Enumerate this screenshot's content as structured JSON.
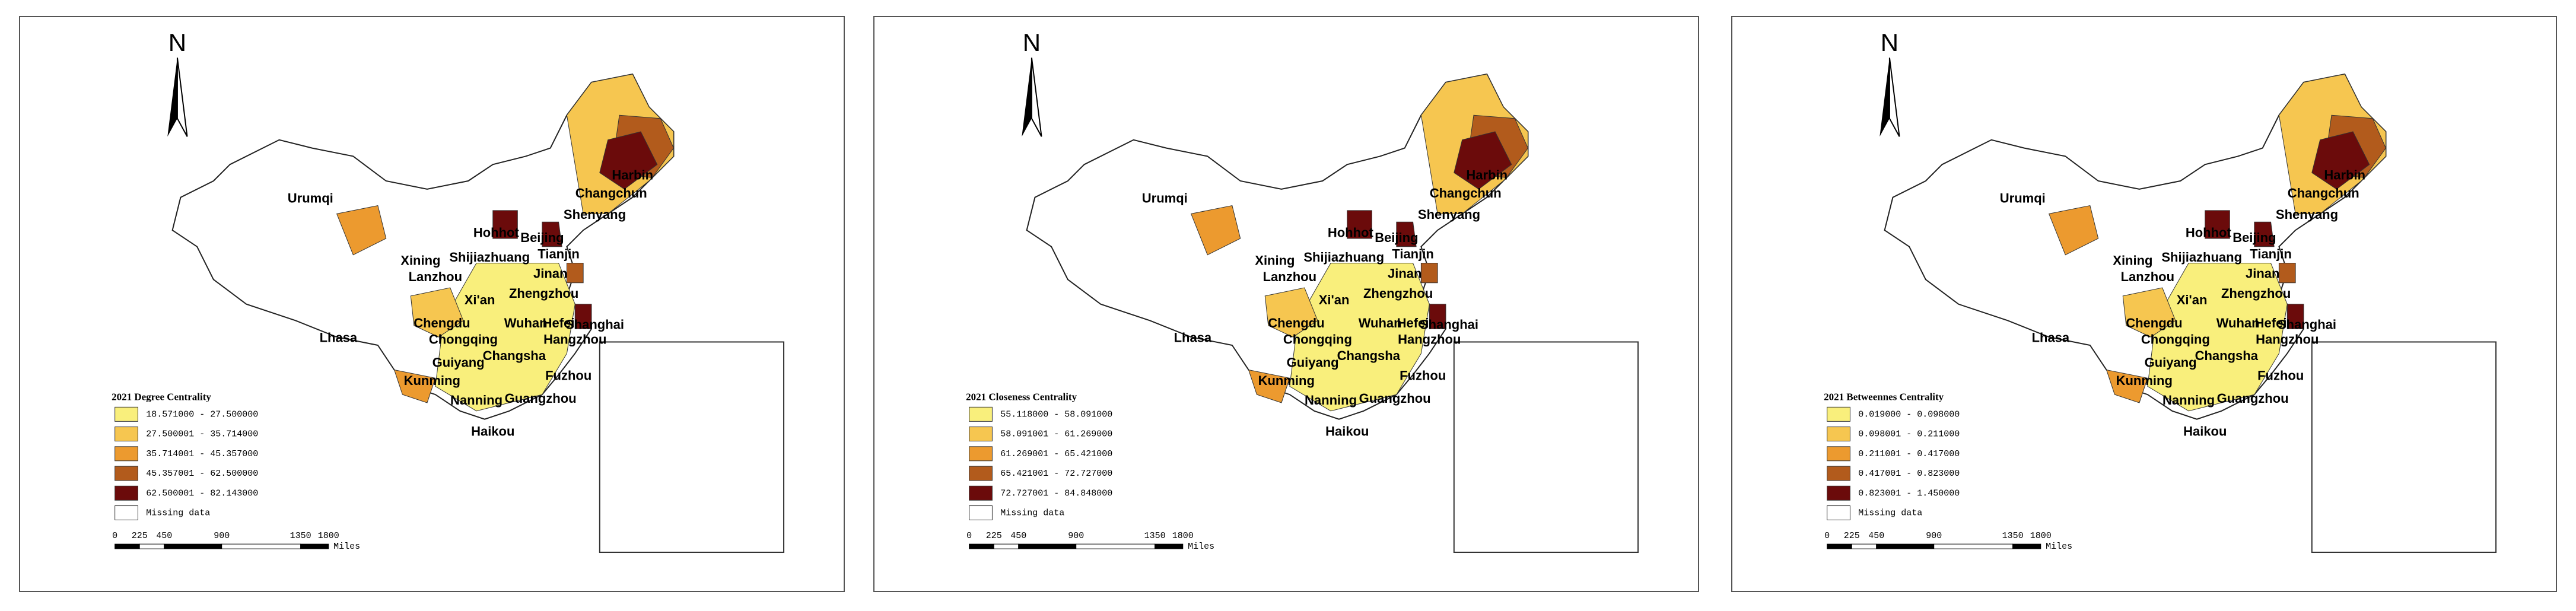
{
  "north_label": "N",
  "scale_labels": [
    "0",
    "225",
    "450",
    "900",
    "1350",
    "1800"
  ],
  "scale_unit": "Miles",
  "cities": [
    "Harbin",
    "Changchun",
    "Shenyang",
    "Urumqi",
    "Hohhot",
    "Beijing",
    "Tianjin",
    "Shijiazhuang",
    "Xining",
    "Lanzhou",
    "Jinan",
    "Xi'an",
    "Zhengzhou",
    "Shanghai",
    "Chengdu",
    "Chongqing",
    "Wuhan",
    "Hefei",
    "Hangzhou",
    "Lhasa",
    "Guiyang",
    "Changsha",
    "Kunming",
    "Fuzhou",
    "Nanning",
    "Guangzhou",
    "Haikou"
  ],
  "panels": [
    {
      "legend_title": "2021 Degree Centrality",
      "missing_label": "Missing data",
      "classes": [
        {
          "label": "18.571000 - 27.500000",
          "color": "#f9ef7c"
        },
        {
          "label": "27.500001 - 35.714000",
          "color": "#f6c650"
        },
        {
          "label": "35.714001 - 45.357000",
          "color": "#ec9a2f"
        },
        {
          "label": "45.357001 - 62.500000",
          "color": "#b25b1c"
        },
        {
          "label": "62.500001 - 82.143000",
          "color": "#6b0b0b"
        }
      ]
    },
    {
      "legend_title": "2021 Closeness Centrality",
      "missing_label": "Missing data",
      "classes": [
        {
          "label": "55.118000 - 58.091000",
          "color": "#f9ef7c"
        },
        {
          "label": "58.091001 - 61.269000",
          "color": "#f6c650"
        },
        {
          "label": "61.269001 - 65.421000",
          "color": "#ec9a2f"
        },
        {
          "label": "65.421001 - 72.727000",
          "color": "#b25b1c"
        },
        {
          "label": "72.727001 - 84.848000",
          "color": "#6b0b0b"
        }
      ]
    },
    {
      "legend_title": "2021 Betweennes Centrality",
      "missing_label": "Missing data",
      "classes": [
        {
          "label": "0.019000 - 0.098000",
          "color": "#f9ef7c"
        },
        {
          "label": "0.098001 - 0.211000",
          "color": "#f6c650"
        },
        {
          "label": "0.211001 - 0.417000",
          "color": "#ec9a2f"
        },
        {
          "label": "0.417001 - 0.823000",
          "color": "#b25b1c"
        },
        {
          "label": "0.823001 - 1.450000",
          "color": "#6b0b0b"
        }
      ]
    }
  ]
}
